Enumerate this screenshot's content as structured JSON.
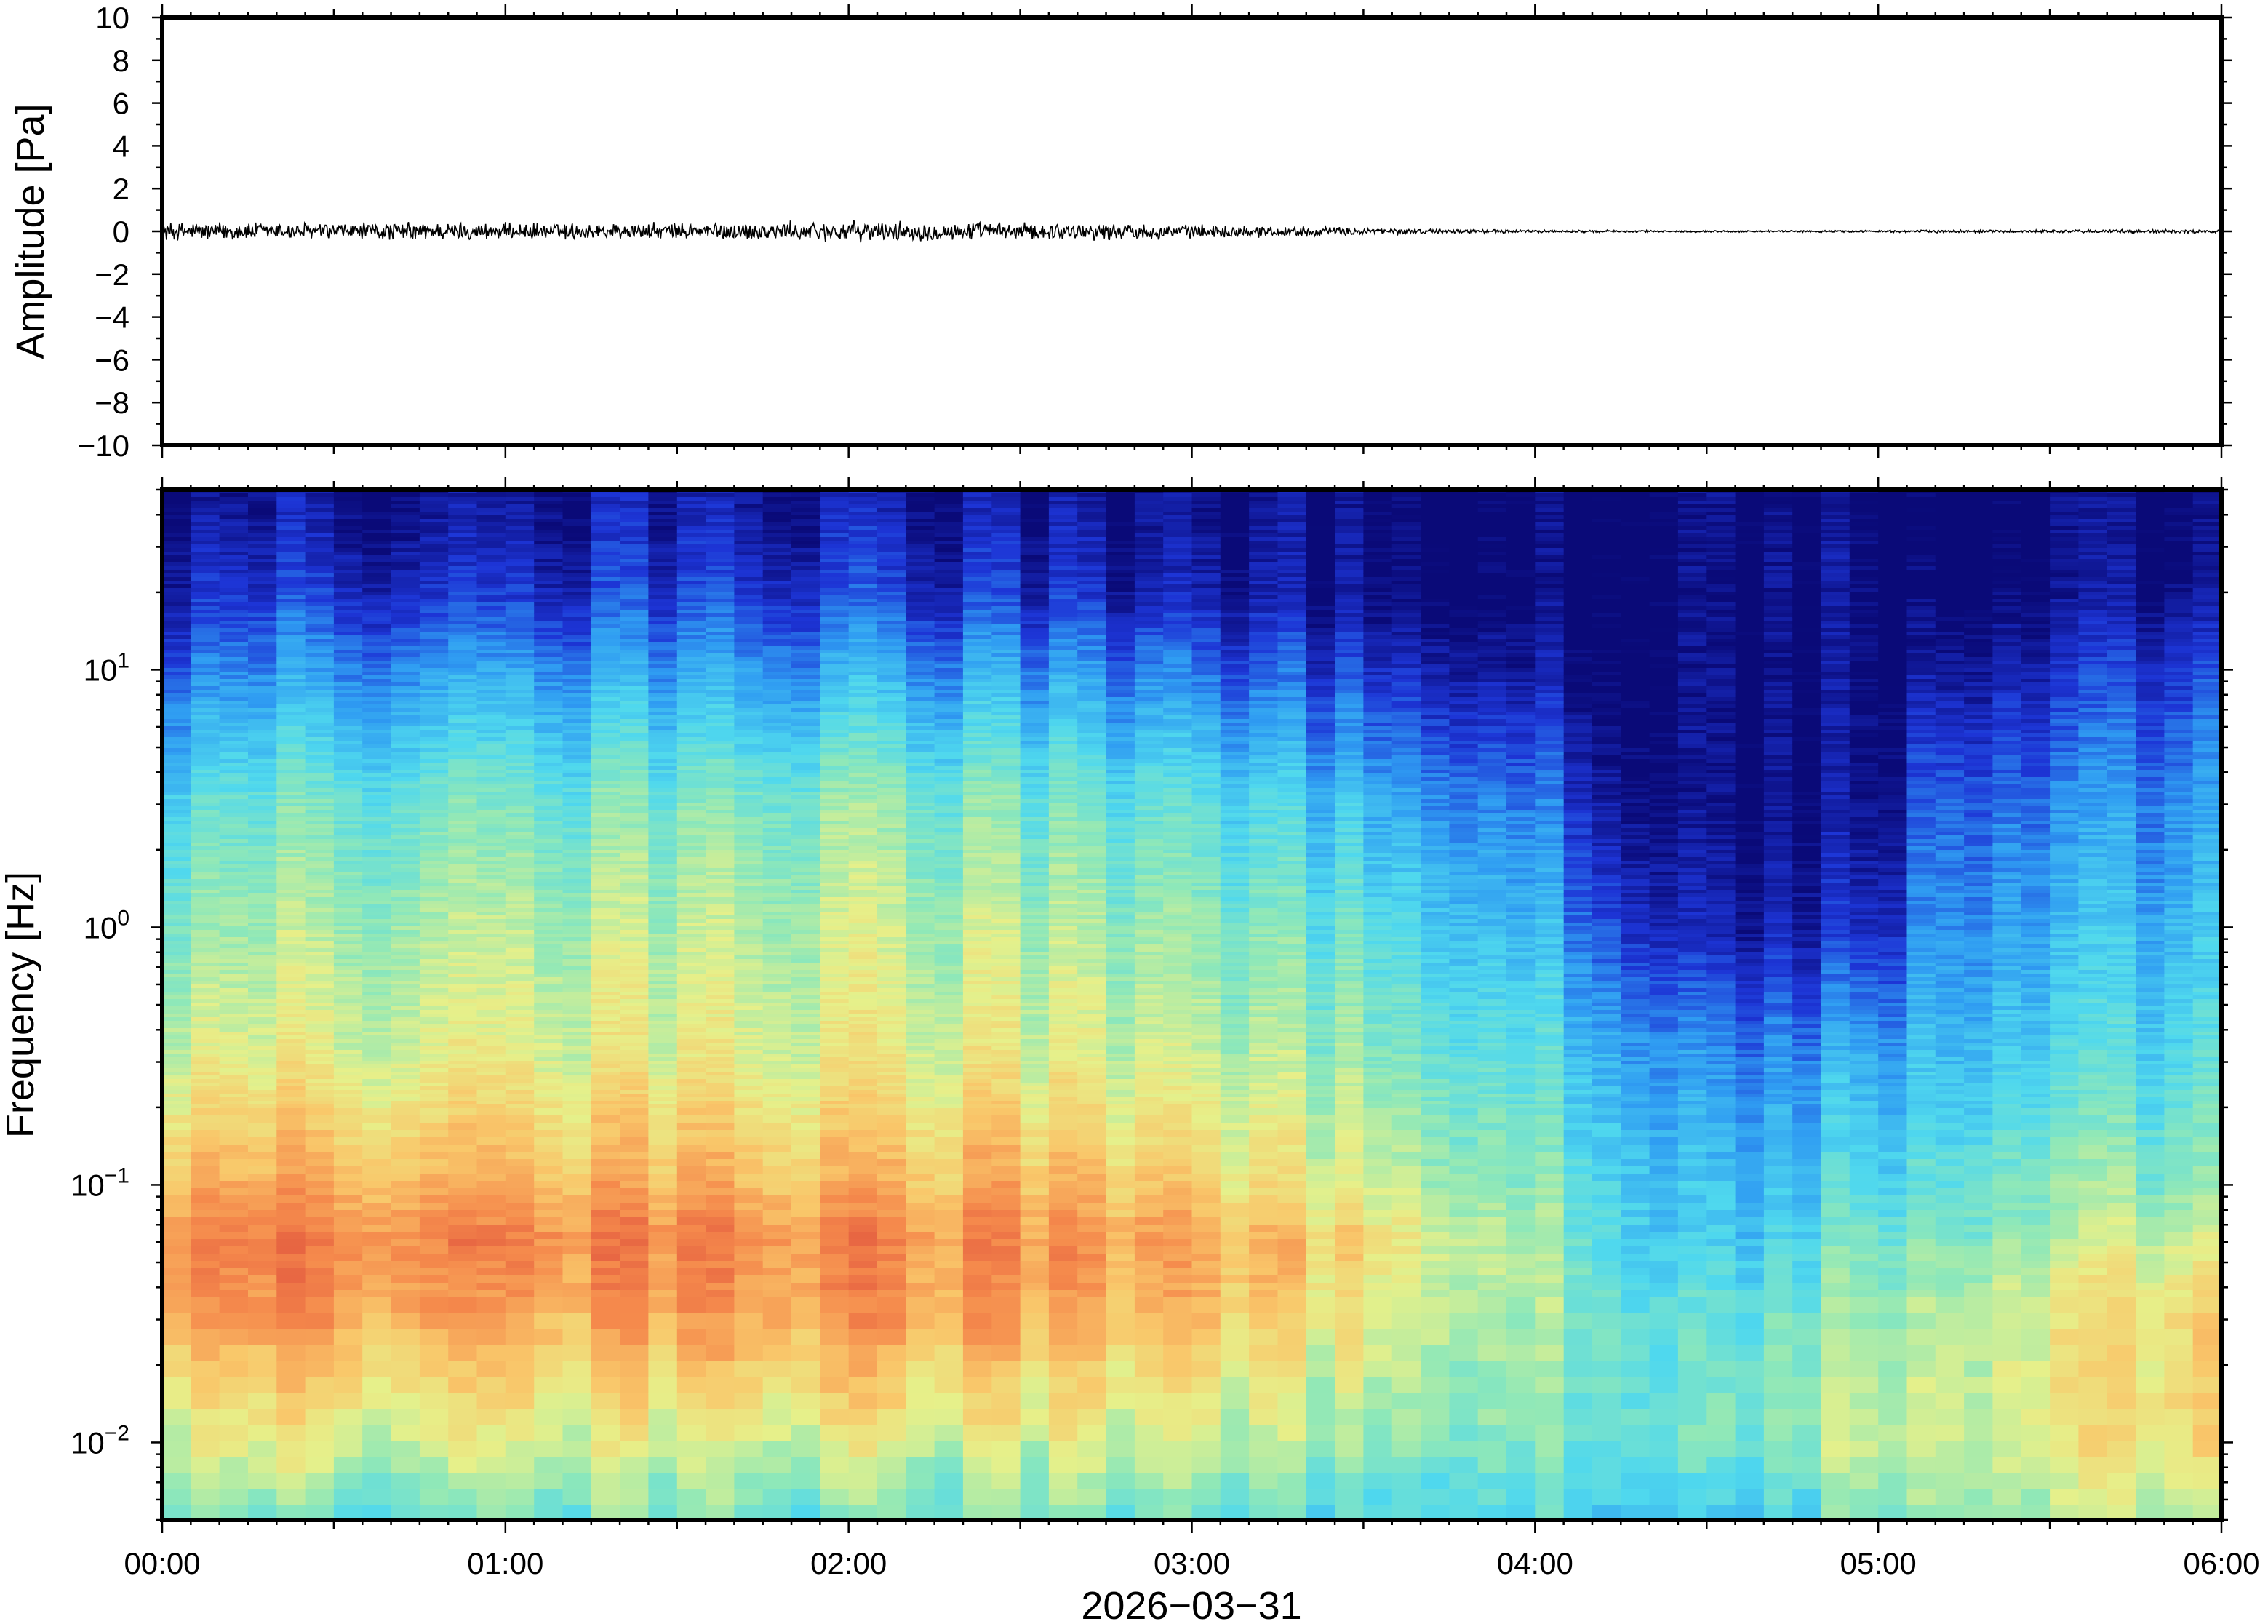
{
  "chart_data": [
    {
      "type": "line",
      "panel": "waveform",
      "ylabel": "Amplitude [Pa]",
      "ylim": [
        -10,
        10
      ],
      "yticks": [
        "10",
        "8",
        "6",
        "4",
        "2",
        "0",
        "−2",
        "−4",
        "−6",
        "−8",
        "−10"
      ],
      "ytick_values": [
        10,
        8,
        6,
        4,
        2,
        0,
        -2,
        -4,
        -6,
        -8,
        -10
      ],
      "xlim_hours": [
        0,
        6
      ],
      "color": "#000000",
      "series": [
        {
          "x_hours": [
            0.0,
            0.25,
            0.5,
            0.75,
            1.0,
            1.25,
            1.5,
            1.75,
            2.0,
            2.25,
            2.5,
            2.75,
            3.0,
            3.25,
            3.5,
            3.75,
            4.0,
            4.25,
            4.5,
            4.75,
            5.0,
            5.25,
            5.5,
            5.75,
            6.0
          ],
          "envelope_pa": [
            0.5,
            0.5,
            0.45,
            0.5,
            0.45,
            0.45,
            0.45,
            0.5,
            0.55,
            0.5,
            0.45,
            0.45,
            0.35,
            0.3,
            0.2,
            0.12,
            0.08,
            0.06,
            0.05,
            0.05,
            0.06,
            0.08,
            0.08,
            0.1,
            0.1
          ]
        }
      ]
    },
    {
      "type": "heatmap",
      "panel": "spectrogram",
      "xlabel": "2026−03−31",
      "ylabel": "Frequency [Hz]",
      "yscale": "log",
      "ylim": [
        0.005,
        50
      ],
      "yticks": [
        {
          "base": "10",
          "exp": "1",
          "value": 10
        },
        {
          "base": "10",
          "exp": "0",
          "value": 1
        },
        {
          "base": "10",
          "exp": "−1",
          "value": 0.1
        },
        {
          "base": "10",
          "exp": "−2",
          "value": 0.01
        }
      ],
      "xticks": [
        "00:00",
        "01:00",
        "02:00",
        "03:00",
        "04:00",
        "05:00",
        "06:00"
      ],
      "xlim_hours": [
        0,
        6
      ],
      "colormap": [
        "#0a0a78",
        "#1d35d6",
        "#2f9cf2",
        "#4fd8ee",
        "#8fe8b8",
        "#e6f08a",
        "#f9c76a",
        "#f58a4c",
        "#e0523d"
      ],
      "time_hours": [
        0.0,
        0.5,
        1.0,
        1.5,
        2.0,
        2.5,
        3.0,
        3.5,
        4.0,
        4.25,
        4.5,
        4.75,
        5.0,
        5.15,
        5.5,
        6.0
      ],
      "log10_freq": [
        -2.3,
        -2.0,
        -1.5,
        -1.2,
        -1.0,
        -0.5,
        0.0,
        0.5,
        1.0,
        1.3,
        1.7
      ],
      "level": [
        [
          0.5,
          0.62,
          0.85,
          0.88,
          0.8,
          0.62,
          0.5,
          0.4,
          0.2,
          0.1,
          0.02
        ],
        [
          0.45,
          0.62,
          0.85,
          0.9,
          0.8,
          0.62,
          0.55,
          0.45,
          0.25,
          0.12,
          0.03
        ],
        [
          0.45,
          0.6,
          0.8,
          0.88,
          0.78,
          0.62,
          0.55,
          0.45,
          0.25,
          0.1,
          0.02
        ],
        [
          0.45,
          0.6,
          0.82,
          0.88,
          0.78,
          0.62,
          0.55,
          0.45,
          0.25,
          0.12,
          0.03
        ],
        [
          0.45,
          0.62,
          0.85,
          0.88,
          0.78,
          0.64,
          0.58,
          0.5,
          0.28,
          0.14,
          0.05
        ],
        [
          0.45,
          0.6,
          0.8,
          0.85,
          0.78,
          0.62,
          0.55,
          0.45,
          0.25,
          0.1,
          0.02
        ],
        [
          0.45,
          0.58,
          0.78,
          0.82,
          0.72,
          0.58,
          0.5,
          0.4,
          0.2,
          0.06,
          0.01
        ],
        [
          0.4,
          0.5,
          0.65,
          0.7,
          0.6,
          0.5,
          0.42,
          0.3,
          0.12,
          0.02,
          0.0
        ],
        [
          0.4,
          0.5,
          0.55,
          0.55,
          0.5,
          0.42,
          0.32,
          0.22,
          0.06,
          0.0,
          0.0
        ],
        [
          0.35,
          0.45,
          0.45,
          0.4,
          0.38,
          0.3,
          0.15,
          0.05,
          0.0,
          0.0,
          0.0
        ],
        [
          0.3,
          0.45,
          0.4,
          0.32,
          0.3,
          0.22,
          0.05,
          0.0,
          0.0,
          0.0,
          0.0
        ],
        [
          0.35,
          0.5,
          0.45,
          0.35,
          0.32,
          0.22,
          0.06,
          0.0,
          0.0,
          0.0,
          0.0
        ],
        [
          0.5,
          0.62,
          0.55,
          0.48,
          0.4,
          0.3,
          0.1,
          0.02,
          0.0,
          0.0,
          0.0
        ],
        [
          0.55,
          0.62,
          0.58,
          0.5,
          0.45,
          0.35,
          0.28,
          0.22,
          0.08,
          0.02,
          0.0
        ],
        [
          0.55,
          0.65,
          0.65,
          0.55,
          0.5,
          0.38,
          0.3,
          0.22,
          0.1,
          0.02,
          0.0
        ],
        [
          0.55,
          0.7,
          0.72,
          0.6,
          0.5,
          0.4,
          0.32,
          0.25,
          0.14,
          0.03,
          0.0
        ]
      ]
    }
  ]
}
